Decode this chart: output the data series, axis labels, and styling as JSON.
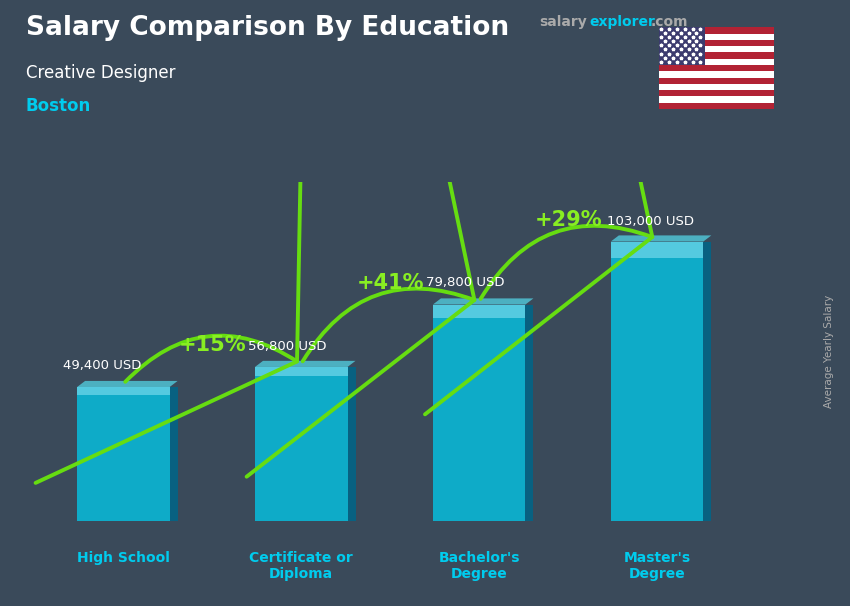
{
  "title_salary": "Salary Comparison By Education",
  "subtitle_job": "Creative Designer",
  "subtitle_city": "Boston",
  "categories": [
    "High School",
    "Certificate or\nDiploma",
    "Bachelor's\nDegree",
    "Master's\nDegree"
  ],
  "values": [
    49400,
    56800,
    79800,
    103000
  ],
  "value_labels": [
    "49,400 USD",
    "56,800 USD",
    "79,800 USD",
    "103,000 USD"
  ],
  "pct_labels": [
    "+15%",
    "+41%",
    "+29%"
  ],
  "bar_color_face": "#00ccee",
  "bar_alpha": 0.75,
  "bg_color": "#3a4a5a",
  "title_color": "#ffffff",
  "subtitle_job_color": "#ffffff",
  "subtitle_city_color": "#00ccee",
  "value_label_color": "#ffffff",
  "pct_label_color": "#88ee22",
  "arrow_color": "#66dd11",
  "xticklabel_color": "#00ccee",
  "ylabel_text": "Average Yearly Salary",
  "ylabel_color": "#aaaaaa",
  "site_salary_color": "#aaaaaa",
  "site_explorer_color": "#00ccee",
  "site_com_color": "#aaaaaa",
  "bar_positions": [
    0.55,
    1.55,
    2.55,
    3.55
  ],
  "bar_width": 0.52,
  "ylim_max": 125000,
  "xlim_min": 0.0,
  "xlim_max": 4.3
}
